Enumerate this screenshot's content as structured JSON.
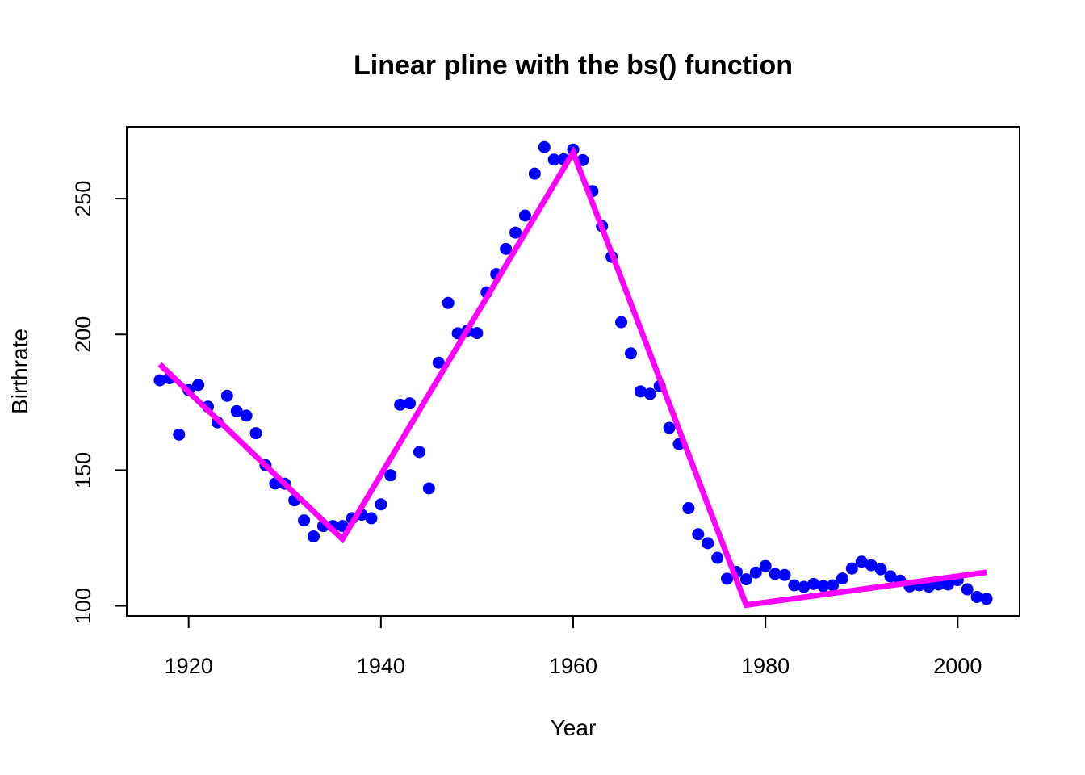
{
  "chart_data": {
    "type": "scatter",
    "title": "Linear pline with the bs() function",
    "xlabel": "Year",
    "ylabel": "Birthrate",
    "xlim": [
      1913.56,
      2006.44
    ],
    "ylim": [
      96.3,
      276.5
    ],
    "x_ticks": [
      1920,
      1940,
      1960,
      1980,
      2000
    ],
    "y_ticks": [
      100,
      150,
      200,
      250
    ],
    "grid": false,
    "legend": "none",
    "series": [
      {
        "kind": "points",
        "color": "#0000ff",
        "x": [
          1917,
          1918,
          1919,
          1920,
          1921,
          1922,
          1923,
          1924,
          1925,
          1926,
          1927,
          1928,
          1929,
          1930,
          1931,
          1932,
          1933,
          1934,
          1935,
          1936,
          1937,
          1938,
          1939,
          1940,
          1941,
          1942,
          1943,
          1944,
          1945,
          1946,
          1947,
          1948,
          1949,
          1950,
          1951,
          1952,
          1953,
          1954,
          1955,
          1956,
          1957,
          1958,
          1959,
          1960,
          1961,
          1962,
          1963,
          1964,
          1965,
          1966,
          1967,
          1968,
          1969,
          1970,
          1971,
          1972,
          1973,
          1974,
          1975,
          1976,
          1977,
          1978,
          1979,
          1980,
          1981,
          1982,
          1983,
          1984,
          1985,
          1986,
          1987,
          1988,
          1989,
          1990,
          1991,
          1992,
          1993,
          1994,
          1995,
          1996,
          1997,
          1998,
          1999,
          2000,
          2001,
          2002,
          2003
        ],
        "y": [
          183.1,
          183.9,
          163.1,
          179.5,
          181.4,
          173.4,
          167.6,
          177.4,
          171.7,
          170.1,
          163.6,
          151.8,
          145.1,
          145.0,
          138.9,
          131.5,
          125.6,
          129.4,
          129.4,
          129.4,
          132.3,
          133.6,
          132.3,
          137.4,
          148.1,
          174.1,
          174.6,
          156.7,
          143.3,
          189.6,
          211.6,
          200.4,
          201.4,
          200.5,
          215.5,
          222.2,
          231.5,
          237.5,
          243.8,
          259.2,
          269.0,
          264.4,
          264.5,
          268.1,
          264.2,
          252.8,
          239.9,
          228.6,
          204.5,
          193.0,
          179.0,
          178.1,
          181.0,
          165.6,
          159.6,
          136.0,
          126.4,
          123.1,
          117.7,
          110.0,
          112.5,
          109.8,
          112.3,
          114.7,
          111.8,
          111.4,
          107.6,
          107.0,
          108.1,
          107.3,
          107.6,
          110.1,
          113.8,
          116.3,
          115.0,
          113.5,
          110.9,
          109.3,
          107.2,
          107.6,
          107.1,
          107.9,
          107.9,
          109.5,
          106.1,
          103.3,
          102.6
        ]
      },
      {
        "kind": "line",
        "color": "#ff00ff",
        "x": [
          1917,
          1936,
          1960,
          1978,
          2003
        ],
        "y": [
          189,
          124.6,
          267,
          100.3,
          112.4
        ]
      }
    ]
  }
}
